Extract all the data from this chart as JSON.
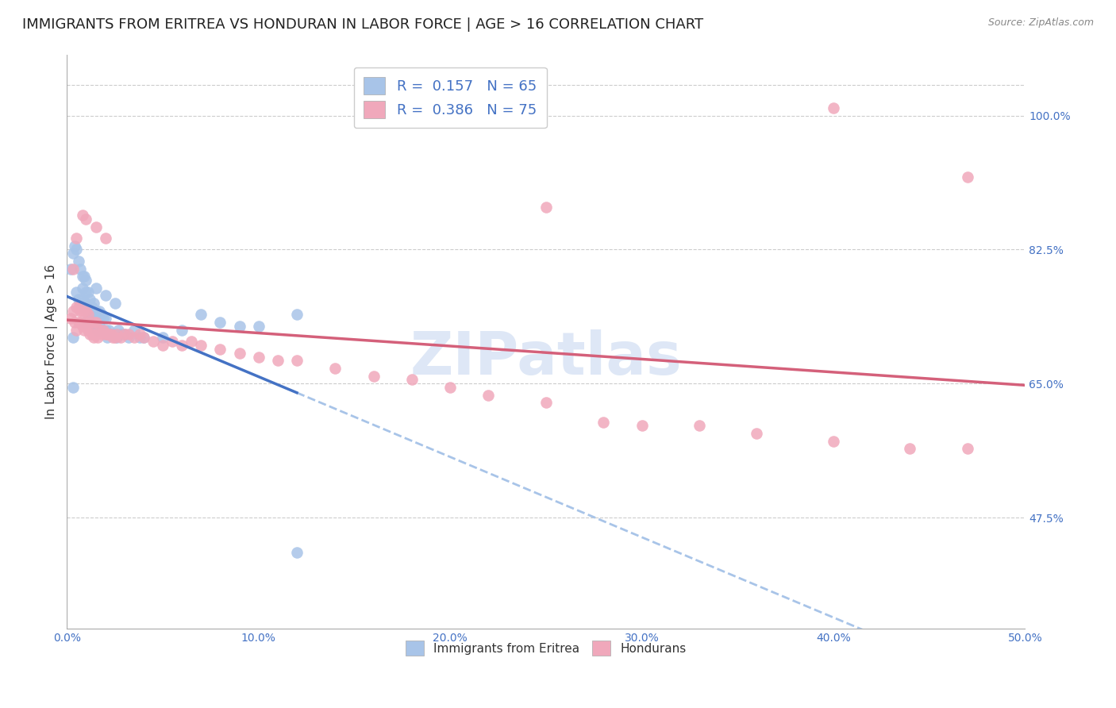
{
  "title": "IMMIGRANTS FROM ERITREA VS HONDURAN IN LABOR FORCE | AGE > 16 CORRELATION CHART",
  "source": "Source: ZipAtlas.com",
  "ylabel": "In Labor Force | Age > 16",
  "x_range": [
    0.0,
    0.5
  ],
  "y_range": [
    0.33,
    1.08
  ],
  "legend_r_eritrea": "0.157",
  "legend_n_eritrea": "65",
  "legend_r_honduran": "0.386",
  "legend_n_honduran": "75",
  "eritrea_color": "#a8c4e8",
  "honduran_color": "#f0a8bb",
  "trendline_eritrea_solid_color": "#4472c4",
  "trendline_eritrea_dashed_color": "#a8c4e8",
  "trendline_honduran_color": "#d4607a",
  "watermark_color": "#c8d8f0",
  "title_fontsize": 13,
  "axis_label_fontsize": 11,
  "tick_fontsize": 10,
  "legend_fontsize": 13,
  "eritrea_x": [
    0.003,
    0.005,
    0.006,
    0.007,
    0.008,
    0.008,
    0.009,
    0.009,
    0.01,
    0.01,
    0.01,
    0.011,
    0.011,
    0.012,
    0.012,
    0.013,
    0.013,
    0.014,
    0.014,
    0.015,
    0.015,
    0.016,
    0.016,
    0.017,
    0.017,
    0.018,
    0.018,
    0.019,
    0.019,
    0.02,
    0.02,
    0.021,
    0.022,
    0.023,
    0.024,
    0.025,
    0.026,
    0.027,
    0.028,
    0.03,
    0.032,
    0.035,
    0.038,
    0.04,
    0.05,
    0.06,
    0.07,
    0.08,
    0.09,
    0.1,
    0.12,
    0.002,
    0.003,
    0.004,
    0.005,
    0.006,
    0.007,
    0.008,
    0.009,
    0.01,
    0.015,
    0.02,
    0.025,
    0.003,
    0.12
  ],
  "eritrea_y": [
    0.71,
    0.77,
    0.76,
    0.755,
    0.775,
    0.76,
    0.73,
    0.75,
    0.73,
    0.755,
    0.77,
    0.74,
    0.77,
    0.74,
    0.76,
    0.73,
    0.75,
    0.73,
    0.755,
    0.725,
    0.745,
    0.72,
    0.74,
    0.725,
    0.745,
    0.72,
    0.74,
    0.72,
    0.735,
    0.72,
    0.735,
    0.71,
    0.72,
    0.715,
    0.715,
    0.715,
    0.71,
    0.72,
    0.715,
    0.715,
    0.71,
    0.72,
    0.71,
    0.71,
    0.71,
    0.72,
    0.74,
    0.73,
    0.725,
    0.725,
    0.74,
    0.8,
    0.82,
    0.83,
    0.825,
    0.81,
    0.8,
    0.79,
    0.79,
    0.785,
    0.775,
    0.765,
    0.755,
    0.645,
    0.43
  ],
  "honduran_x": [
    0.002,
    0.003,
    0.004,
    0.005,
    0.005,
    0.006,
    0.006,
    0.007,
    0.007,
    0.008,
    0.008,
    0.009,
    0.009,
    0.01,
    0.01,
    0.011,
    0.011,
    0.012,
    0.012,
    0.013,
    0.013,
    0.014,
    0.014,
    0.015,
    0.015,
    0.016,
    0.017,
    0.018,
    0.019,
    0.02,
    0.021,
    0.022,
    0.023,
    0.024,
    0.025,
    0.026,
    0.028,
    0.03,
    0.032,
    0.035,
    0.038,
    0.04,
    0.045,
    0.05,
    0.055,
    0.06,
    0.065,
    0.07,
    0.08,
    0.09,
    0.1,
    0.11,
    0.12,
    0.14,
    0.16,
    0.18,
    0.2,
    0.22,
    0.25,
    0.28,
    0.3,
    0.33,
    0.36,
    0.4,
    0.44,
    0.47,
    0.003,
    0.005,
    0.008,
    0.01,
    0.015,
    0.02,
    0.25,
    0.4,
    0.47
  ],
  "honduran_y": [
    0.735,
    0.745,
    0.73,
    0.72,
    0.75,
    0.73,
    0.75,
    0.73,
    0.745,
    0.725,
    0.745,
    0.72,
    0.73,
    0.725,
    0.745,
    0.72,
    0.74,
    0.715,
    0.73,
    0.715,
    0.73,
    0.71,
    0.73,
    0.715,
    0.73,
    0.71,
    0.72,
    0.715,
    0.72,
    0.715,
    0.715,
    0.715,
    0.715,
    0.71,
    0.71,
    0.715,
    0.71,
    0.715,
    0.715,
    0.71,
    0.715,
    0.71,
    0.705,
    0.7,
    0.705,
    0.7,
    0.705,
    0.7,
    0.695,
    0.69,
    0.685,
    0.68,
    0.68,
    0.67,
    0.66,
    0.655,
    0.645,
    0.635,
    0.625,
    0.6,
    0.595,
    0.595,
    0.585,
    0.575,
    0.565,
    0.565,
    0.8,
    0.84,
    0.87,
    0.865,
    0.855,
    0.84,
    0.88,
    1.01,
    0.92
  ]
}
